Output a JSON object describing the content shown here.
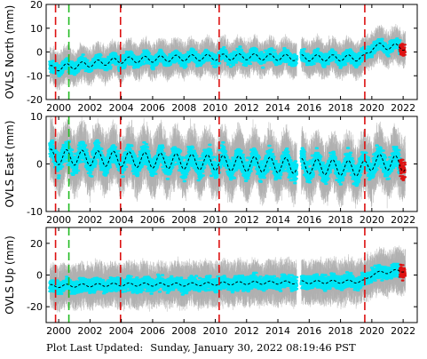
{
  "footer": {
    "label": "Plot Last Updated:",
    "timestamp": "Sunday, January 30, 2022 08:19:46 PST"
  },
  "colors": {
    "daily_points": "#00e5f5",
    "error_bars": "#b0b0b0",
    "recent_points": "#dd1111",
    "model_curve": "#000000",
    "red_offsets": "#dd1111",
    "green_offsets": "#22bb22"
  },
  "chart_data": [
    {
      "type": "scatter",
      "ylabel": "OVLS North (mm)",
      "xlim": [
        1999.2,
        2022.9
      ],
      "ylim": [
        -20,
        20
      ],
      "yticks": [
        -20,
        -10,
        0,
        10,
        20
      ],
      "xticks": [
        2000,
        2002,
        2004,
        2006,
        2008,
        2010,
        2012,
        2014,
        2016,
        2018,
        2020,
        2022
      ],
      "grid": false,
      "red_offset_lines": [
        1999.8,
        2003.95,
        2010.25,
        2019.55
      ],
      "green_offset_lines": [
        2000.65
      ],
      "data_gap": [
        2015.2,
        2015.5
      ],
      "model_curve": {
        "x": [
          1999.5,
          2004,
          2008,
          2012,
          2016,
          2019.5,
          2020.1,
          2022.1
        ],
        "y": [
          -7,
          -3.5,
          -2.5,
          -2,
          -2.5,
          -2.5,
          2.5,
          2
        ],
        "seasonal_amplitude": 1.3
      },
      "scatter_spread_mm": 3.5,
      "error_bar_spread_mm": 6.5
    },
    {
      "type": "scatter",
      "ylabel": "OVLS East (mm)",
      "xlim": [
        1999.2,
        2022.9
      ],
      "ylim": [
        -10,
        10
      ],
      "yticks": [
        -10,
        0,
        10
      ],
      "xticks": [
        2000,
        2002,
        2004,
        2006,
        2008,
        2010,
        2012,
        2014,
        2016,
        2018,
        2020,
        2022
      ],
      "grid": false,
      "red_offset_lines": [
        1999.8,
        2003.95,
        2010.25,
        2019.55
      ],
      "green_offset_lines": [
        2000.65
      ],
      "data_gap": [
        2015.2,
        2015.5
      ],
      "model_curve": {
        "x": [
          1999.5,
          2004,
          2008,
          2012,
          2016,
          2019.5,
          2020.1,
          2022.1
        ],
        "y": [
          1.5,
          1,
          0.5,
          0,
          -0.5,
          -1,
          0.5,
          0
        ],
        "seasonal_amplitude": 1.6
      },
      "scatter_spread_mm": 3,
      "error_bar_spread_mm": 5.5
    },
    {
      "type": "scatter",
      "ylabel": "OVLS Up (mm)",
      "xlim": [
        1999.2,
        2022.9
      ],
      "ylim": [
        -30,
        30
      ],
      "yticks": [
        -20,
        0,
        20
      ],
      "xticks": [
        2000,
        2002,
        2004,
        2006,
        2008,
        2010,
        2012,
        2014,
        2016,
        2018,
        2020,
        2022
      ],
      "grid": false,
      "red_offset_lines": [
        1999.8,
        2003.95,
        2010.25,
        2019.55
      ],
      "green_offset_lines": [
        2000.65
      ],
      "data_gap": [
        2015.2,
        2015.5
      ],
      "model_curve": {
        "x": [
          1999.5,
          2004,
          2008,
          2012,
          2016,
          2019.5,
          2020.1,
          2022.1
        ],
        "y": [
          -7,
          -6,
          -6,
          -5,
          -4.5,
          -4,
          1,
          3
        ],
        "seasonal_amplitude": 1
      },
      "scatter_spread_mm": 6,
      "error_bar_spread_mm": 12
    }
  ]
}
